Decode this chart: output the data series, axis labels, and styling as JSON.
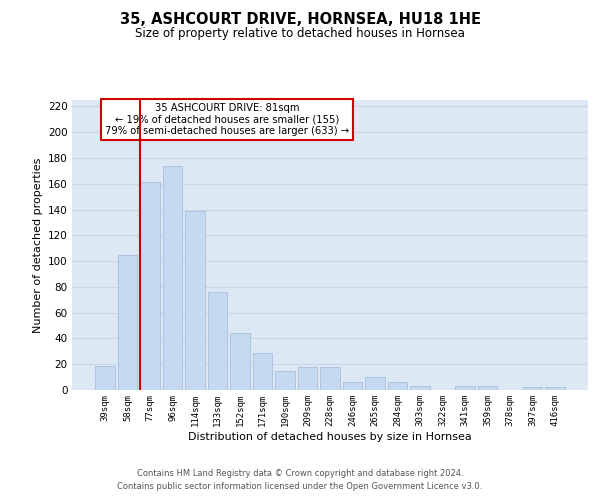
{
  "title": "35, ASHCOURT DRIVE, HORNSEA, HU18 1HE",
  "subtitle": "Size of property relative to detached houses in Hornsea",
  "xlabel": "Distribution of detached houses by size in Hornsea",
  "ylabel": "Number of detached properties",
  "bar_labels": [
    "39sqm",
    "58sqm",
    "77sqm",
    "96sqm",
    "114sqm",
    "133sqm",
    "152sqm",
    "171sqm",
    "190sqm",
    "209sqm",
    "228sqm",
    "246sqm",
    "265sqm",
    "284sqm",
    "303sqm",
    "322sqm",
    "341sqm",
    "359sqm",
    "378sqm",
    "397sqm",
    "416sqm"
  ],
  "bar_values": [
    19,
    105,
    161,
    174,
    139,
    76,
    44,
    29,
    15,
    18,
    18,
    6,
    10,
    6,
    3,
    0,
    3,
    3,
    0,
    2,
    2
  ],
  "bar_color": "#c5d9f0",
  "bar_edge_color": "#a0b8d8",
  "vline_color": "#cc0000",
  "ylim": [
    0,
    225
  ],
  "yticks": [
    0,
    20,
    40,
    60,
    80,
    100,
    120,
    140,
    160,
    180,
    200,
    220
  ],
  "annotation_title": "35 ASHCOURT DRIVE: 81sqm",
  "annotation_line1": "← 19% of detached houses are smaller (155)",
  "annotation_line2": "79% of semi-detached houses are larger (633) →",
  "annotation_box_color": "#ffffff",
  "annotation_box_edge": "#cc0000",
  "grid_color": "#c8d8e8",
  "background_color": "#dce8f4",
  "footer1": "Contains HM Land Registry data © Crown copyright and database right 2024.",
  "footer2": "Contains public sector information licensed under the Open Government Licence v3.0."
}
